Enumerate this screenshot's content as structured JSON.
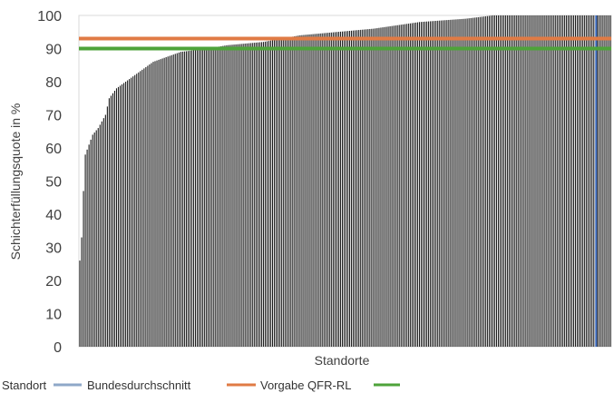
{
  "chart_data": {
    "type": "bar",
    "xlabel": "Standorte",
    "ylabel": "Schichterfüllungsquote in %",
    "ylim": [
      0,
      100
    ],
    "yticks": [
      0,
      10,
      20,
      30,
      40,
      50,
      60,
      70,
      80,
      90,
      100
    ],
    "grid": false,
    "legend_position": "bottom",
    "series": [
      {
        "name": "Standort",
        "color": "#1a1a1a",
        "n_bars": 290,
        "sorted_profile": [
          [
            0,
            26
          ],
          [
            1,
            33
          ],
          [
            2,
            47
          ],
          [
            3,
            58
          ],
          [
            5,
            61
          ],
          [
            7,
            64
          ],
          [
            10,
            66
          ],
          [
            14,
            70
          ],
          [
            16,
            75
          ],
          [
            20,
            78
          ],
          [
            25,
            80
          ],
          [
            30,
            82
          ],
          [
            35,
            84
          ],
          [
            40,
            86
          ],
          [
            45,
            87
          ],
          [
            55,
            89
          ],
          [
            70,
            90
          ],
          [
            80,
            91
          ],
          [
            100,
            92
          ],
          [
            120,
            94
          ],
          [
            140,
            95
          ],
          [
            160,
            96
          ],
          [
            185,
            98
          ],
          [
            210,
            99
          ],
          [
            225,
            100
          ],
          [
            289,
            100
          ]
        ]
      },
      {
        "name": "Bundesdurchschnitt",
        "color": "#e07b45",
        "value": 93
      },
      {
        "name": "Vorgabe QFR-RL",
        "color": "#4ea33a",
        "value": 90
      }
    ],
    "highlight_bar": {
      "index": 281,
      "color": "#4472c4"
    },
    "legend": [
      {
        "label": "Standort",
        "color": "#8fa8c8"
      },
      {
        "label": "Bundesdurchschnitt",
        "color": "#e07b45"
      },
      {
        "label": "Vorgabe QFR-RL",
        "color": "#4ea33a"
      }
    ]
  }
}
